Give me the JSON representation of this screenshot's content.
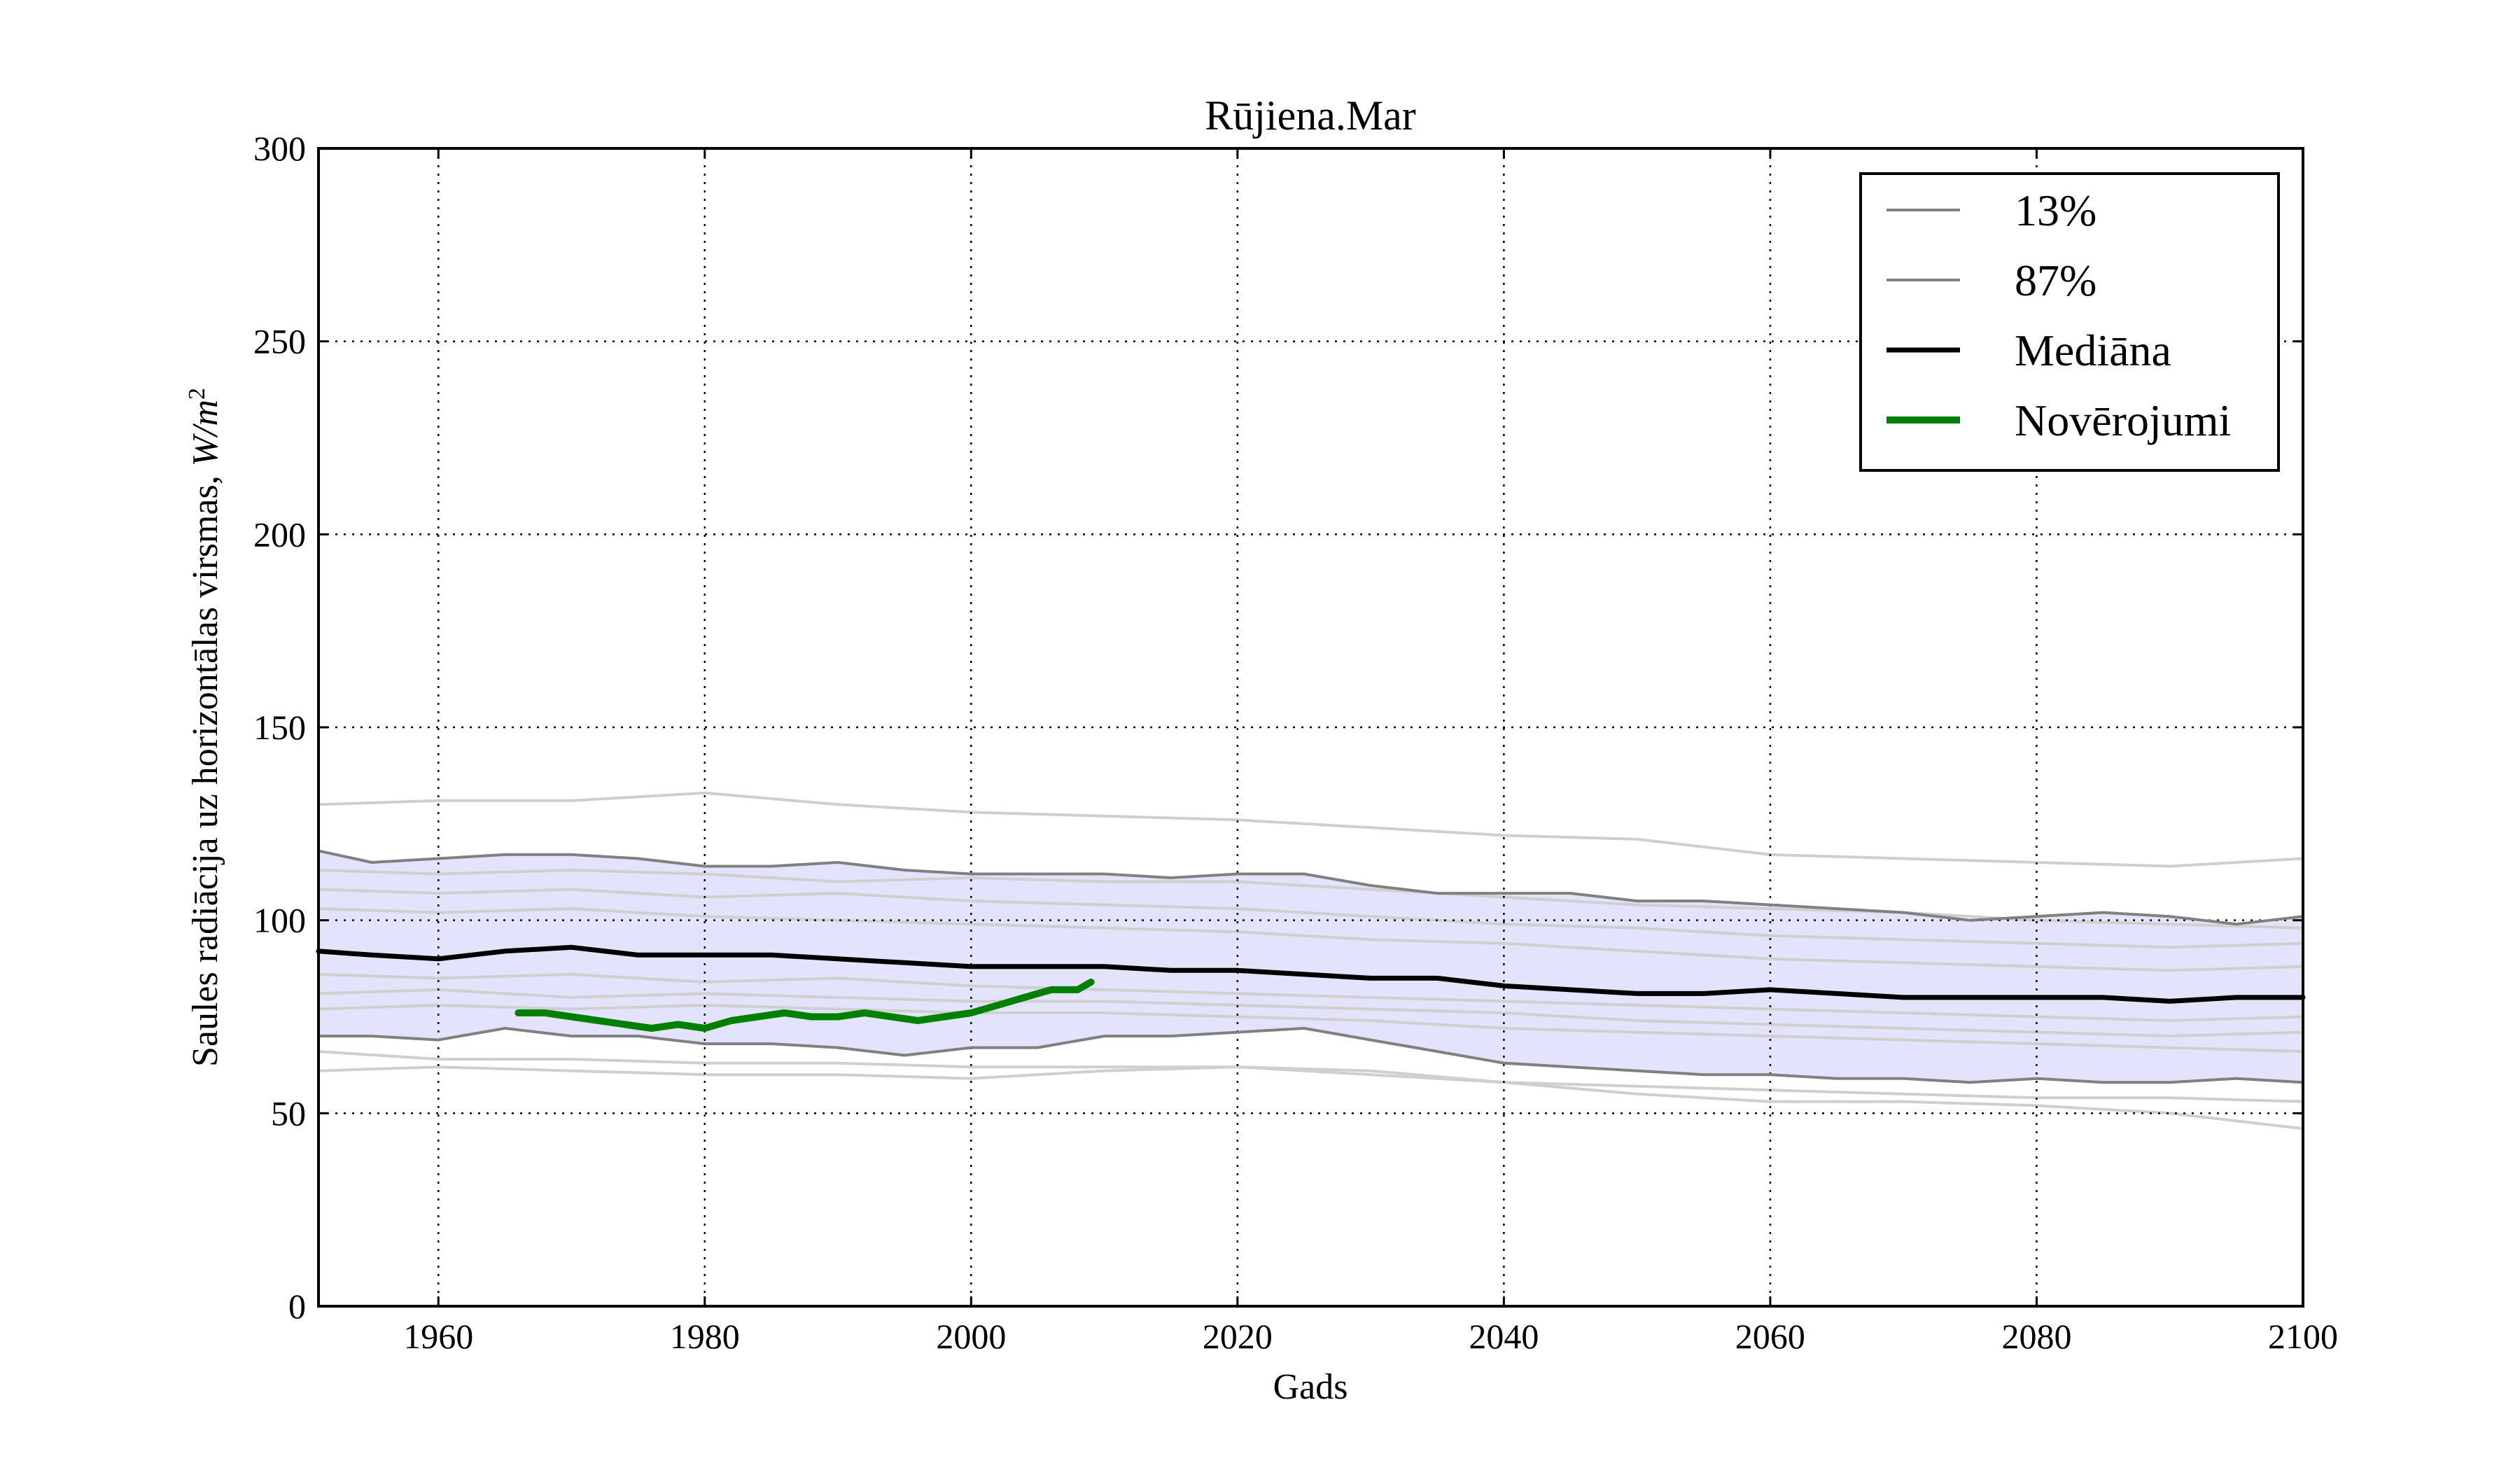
{
  "chart_data": {
    "type": "line",
    "title": "Rūjiena.Mar",
    "xlabel": "Gads",
    "ylabel": "Saules radiācija uz horizontālas virsmas, W/m²",
    "ylabel_text": "Saules radiācija uz horizontālas virsmas, ",
    "ylabel_unit": "W/m",
    "ylabel_exp": "2",
    "xlim": [
      1951,
      2100
    ],
    "ylim": [
      0,
      300
    ],
    "x_ticks": [
      1960,
      1980,
      2000,
      2020,
      2040,
      2060,
      2080,
      2100
    ],
    "y_ticks": [
      0,
      50,
      100,
      150,
      200,
      250,
      300
    ],
    "grid": true,
    "legend_position": "top-right",
    "band": {
      "x": [
        1951,
        1955,
        1960,
        1965,
        1970,
        1975,
        1980,
        1985,
        1990,
        1995,
        2000,
        2005,
        2010,
        2015,
        2020,
        2025,
        2030,
        2035,
        2040,
        2045,
        2050,
        2055,
        2060,
        2065,
        2070,
        2075,
        2080,
        2085,
        2090,
        2095,
        2100
      ],
      "upper": [
        118,
        115,
        116,
        117,
        117,
        116,
        114,
        114,
        115,
        113,
        112,
        112,
        112,
        111,
        112,
        112,
        109,
        107,
        107,
        107,
        105,
        105,
        104,
        103,
        102,
        100,
        101,
        102,
        101,
        99,
        101
      ],
      "lower": [
        70,
        70,
        69,
        72,
        70,
        70,
        68,
        68,
        67,
        65,
        67,
        67,
        70,
        70,
        71,
        72,
        69,
        66,
        63,
        62,
        61,
        60,
        60,
        59,
        59,
        58,
        59,
        58,
        58,
        59,
        58
      ]
    },
    "series": [
      {
        "name": "13%",
        "color": "#808080",
        "x": [
          1951,
          1955,
          1960,
          1965,
          1970,
          1975,
          1980,
          1985,
          1990,
          1995,
          2000,
          2005,
          2010,
          2015,
          2020,
          2025,
          2030,
          2035,
          2040,
          2045,
          2050,
          2055,
          2060,
          2065,
          2070,
          2075,
          2080,
          2085,
          2090,
          2095,
          2100
        ],
        "y": [
          70,
          70,
          69,
          72,
          70,
          70,
          68,
          68,
          67,
          65,
          67,
          67,
          70,
          70,
          71,
          72,
          69,
          66,
          63,
          62,
          61,
          60,
          60,
          59,
          59,
          58,
          59,
          58,
          58,
          59,
          58
        ]
      },
      {
        "name": "87%",
        "color": "#808080",
        "x": [
          1951,
          1955,
          1960,
          1965,
          1970,
          1975,
          1980,
          1985,
          1990,
          1995,
          2000,
          2005,
          2010,
          2015,
          2020,
          2025,
          2030,
          2035,
          2040,
          2045,
          2050,
          2055,
          2060,
          2065,
          2070,
          2075,
          2080,
          2085,
          2090,
          2095,
          2100
        ],
        "y": [
          118,
          115,
          116,
          117,
          117,
          116,
          114,
          114,
          115,
          113,
          112,
          112,
          112,
          111,
          112,
          112,
          109,
          107,
          107,
          107,
          105,
          105,
          104,
          103,
          102,
          100,
          101,
          102,
          101,
          99,
          101
        ]
      },
      {
        "name": "Mediāna",
        "color": "#000000",
        "x": [
          1951,
          1955,
          1960,
          1965,
          1970,
          1975,
          1980,
          1985,
          1990,
          1995,
          2000,
          2005,
          2010,
          2015,
          2020,
          2025,
          2030,
          2035,
          2040,
          2045,
          2050,
          2055,
          2060,
          2065,
          2070,
          2075,
          2080,
          2085,
          2090,
          2095,
          2100
        ],
        "y": [
          92,
          91,
          90,
          92,
          93,
          91,
          91,
          91,
          90,
          89,
          88,
          88,
          88,
          87,
          87,
          86,
          85,
          85,
          83,
          82,
          81,
          81,
          82,
          81,
          80,
          80,
          80,
          80,
          79,
          80,
          80
        ]
      },
      {
        "name": "Novērojumi",
        "color": "#008000",
        "x": [
          1966,
          1968,
          1970,
          1972,
          1974,
          1976,
          1978,
          1980,
          1982,
          1984,
          1986,
          1988,
          1990,
          1992,
          1994,
          1996,
          1998,
          2000,
          2002,
          2004,
          2006,
          2008,
          2009
        ],
        "y": [
          76,
          76,
          75,
          74,
          73,
          72,
          73,
          72,
          74,
          75,
          76,
          75,
          75,
          76,
          75,
          74,
          75,
          76,
          78,
          80,
          82,
          82,
          84
        ]
      }
    ],
    "ensemble_members": [
      {
        "x": [
          1951,
          1960,
          1970,
          1980,
          1990,
          2000,
          2010,
          2020,
          2030,
          2040,
          2050,
          2060,
          2070,
          2080,
          2090,
          2100
        ],
        "y": [
          130,
          131,
          131,
          133,
          130,
          128,
          127,
          126,
          124,
          122,
          121,
          117,
          116,
          115,
          114,
          116
        ]
      },
      {
        "x": [
          1951,
          1960,
          1970,
          1980,
          1990,
          2000,
          2010,
          2020,
          2030,
          2040,
          2050,
          2060,
          2070,
          2080,
          2090,
          2100
        ],
        "y": [
          113,
          112,
          113,
          112,
          110,
          111,
          110,
          110,
          108,
          106,
          104,
          103,
          102,
          100,
          99,
          98
        ]
      },
      {
        "x": [
          1951,
          1960,
          1970,
          1980,
          1990,
          2000,
          2010,
          2020,
          2030,
          2040,
          2050,
          2060,
          2070,
          2080,
          2090,
          2100
        ],
        "y": [
          108,
          107,
          108,
          106,
          107,
          105,
          104,
          103,
          101,
          99,
          98,
          96,
          95,
          94,
          93,
          94
        ]
      },
      {
        "x": [
          1951,
          1960,
          1970,
          1980,
          1990,
          2000,
          2010,
          2020,
          2030,
          2040,
          2050,
          2060,
          2070,
          2080,
          2090,
          2100
        ],
        "y": [
          103,
          102,
          103,
          101,
          100,
          99,
          98,
          97,
          95,
          94,
          92,
          90,
          89,
          88,
          87,
          88
        ]
      },
      {
        "x": [
          1951,
          1960,
          1970,
          1980,
          1990,
          2000,
          2010,
          2020,
          2030,
          2040,
          2050,
          2060,
          2070,
          2080,
          2090,
          2100
        ],
        "y": [
          86,
          85,
          86,
          84,
          85,
          83,
          82,
          81,
          80,
          79,
          78,
          77,
          76,
          75,
          74,
          75
        ]
      },
      {
        "x": [
          1951,
          1960,
          1970,
          1980,
          1990,
          2000,
          2010,
          2020,
          2030,
          2040,
          2050,
          2060,
          2070,
          2080,
          2090,
          2100
        ],
        "y": [
          81,
          82,
          80,
          81,
          80,
          79,
          79,
          78,
          77,
          76,
          74,
          73,
          72,
          71,
          70,
          71
        ]
      },
      {
        "x": [
          1951,
          1960,
          1970,
          1980,
          1990,
          2000,
          2010,
          2020,
          2030,
          2040,
          2050,
          2060,
          2070,
          2080,
          2090,
          2100
        ],
        "y": [
          77,
          78,
          77,
          78,
          77,
          76,
          76,
          75,
          74,
          72,
          71,
          70,
          69,
          68,
          67,
          66
        ]
      },
      {
        "x": [
          1951,
          1960,
          1970,
          1980,
          1990,
          2000,
          2010,
          2020,
          2030,
          2040,
          2050,
          2060,
          2070,
          2080,
          2090,
          2100
        ],
        "y": [
          66,
          64,
          64,
          63,
          63,
          62,
          62,
          62,
          60,
          58,
          57,
          56,
          55,
          54,
          54,
          53
        ]
      },
      {
        "x": [
          1951,
          1960,
          1970,
          1980,
          1990,
          2000,
          2010,
          2020,
          2030,
          2040,
          2050,
          2060,
          2070,
          2080,
          2090,
          2100
        ],
        "y": [
          61,
          62,
          61,
          60,
          60,
          59,
          61,
          62,
          61,
          58,
          55,
          53,
          53,
          52,
          50,
          46
        ]
      }
    ]
  }
}
